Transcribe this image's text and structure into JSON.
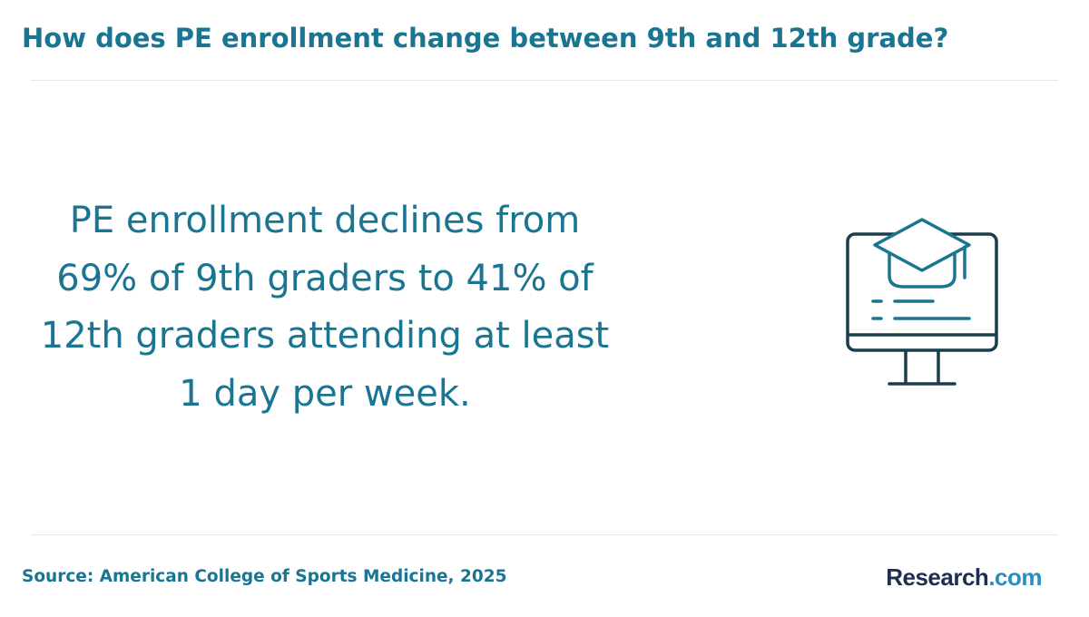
{
  "header": {
    "title": "How does PE enrollment change between 9th and 12th grade?"
  },
  "main": {
    "headline": "PE enrollment declines from 69% of 9th graders to 41% of 12th graders attending at least 1 day per week.",
    "icon": "computer-monitor-graduation-cap-icon"
  },
  "footer": {
    "source": "Source: American College of Sports Medicine, 2025",
    "logo": {
      "brand": "Research",
      "tld": ".com"
    }
  },
  "colors": {
    "primary": "#1a7592",
    "icon_dark": "#1b3e4c",
    "icon_accent": "#1a7592",
    "logo_navy": "#1e2f4f",
    "logo_blue": "#2a8fc0",
    "divider": "#e6e6e6"
  }
}
